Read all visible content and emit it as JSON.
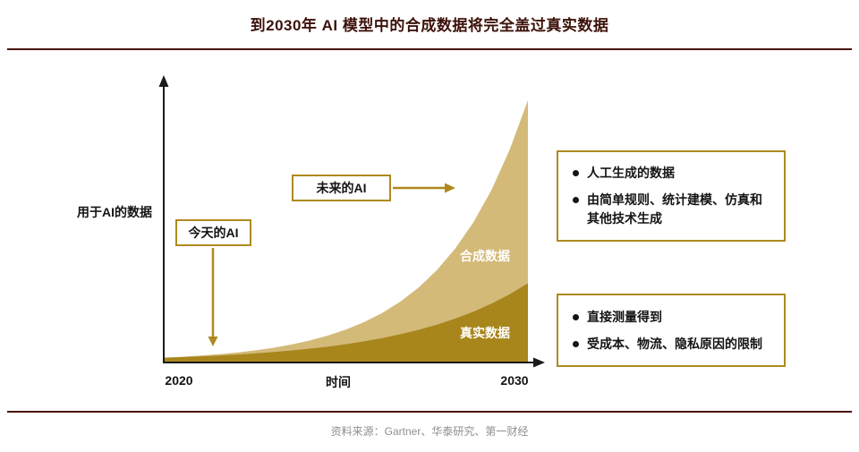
{
  "header": {
    "title": "到2030年 AI 模型中的合成数据将完全盖过真实数据"
  },
  "footer": {
    "source": "资料来源：Gartner、华泰研究、第一财经"
  },
  "chart": {
    "y_axis_label": "用于AI的数据",
    "x_axis_label": "时间",
    "x_tick_left": "2020",
    "x_tick_right": "2030",
    "synthetic_area_label": "合成数据",
    "real_area_label": "真实数据",
    "today_label": "今天的AI",
    "future_label": "未来的AI"
  },
  "callouts": {
    "synthetic": {
      "bullets": [
        "人工生成的数据",
        "由简单规则、统计建模、仿真和其他技术生成"
      ]
    },
    "real": {
      "bullets": [
        "直接测量得到",
        "受成本、物流、隐私原因的限制"
      ]
    }
  },
  "colors": {
    "accent_gold": "#ae8a1e",
    "synthetic_fill": "#d4ba79",
    "real_fill": "#a8861c",
    "rule_maroon": "#4a140e",
    "footer_gray": "#8f8f8f",
    "area_label_text": "#ffffff"
  },
  "chart_data": {
    "type": "area",
    "title": "到2030年 AI 模型中的合成数据将完全盖过真实数据",
    "xlabel": "时间",
    "ylabel": "用于AI的数据",
    "x_range": [
      2020,
      2030
    ],
    "x_ticks": [
      2020,
      2030
    ],
    "y_units": "relative (unlabeled axis, normalized 0-1)",
    "stacking": "真实数据 (real) fills bottom band; 合成数据 (synthetic) fills between real curve and total curve; both grow exponentially to 2030 where synthetic dominates",
    "legend_position": "labels inside areas",
    "x": [
      2020,
      2020.5,
      2021,
      2021.5,
      2022,
      2022.5,
      2023,
      2023.5,
      2024,
      2024.5,
      2025,
      2025.5,
      2026,
      2026.5,
      2027,
      2027.5,
      2028,
      2028.5,
      2029,
      2029.5,
      2030
    ],
    "series": [
      {
        "name": "总数据（合成+真实）上沿曲线",
        "values": [
          0.015,
          0.0185,
          0.0228,
          0.0281,
          0.0347,
          0.0428,
          0.0529,
          0.0652,
          0.0805,
          0.0993,
          0.1225,
          0.1511,
          0.1864,
          0.2299,
          0.2837,
          0.3499,
          0.4317,
          0.5326,
          0.657,
          0.8106,
          1.0
        ]
      },
      {
        "name": "真实数据",
        "values": [
          0.0149,
          0.0174,
          0.0202,
          0.0234,
          0.0272,
          0.0316,
          0.0367,
          0.0427,
          0.0496,
          0.0576,
          0.0669,
          0.0778,
          0.0904,
          0.105,
          0.122,
          0.1417,
          0.1646,
          0.1913,
          0.2223,
          0.2582,
          0.3
        ]
      }
    ]
  }
}
